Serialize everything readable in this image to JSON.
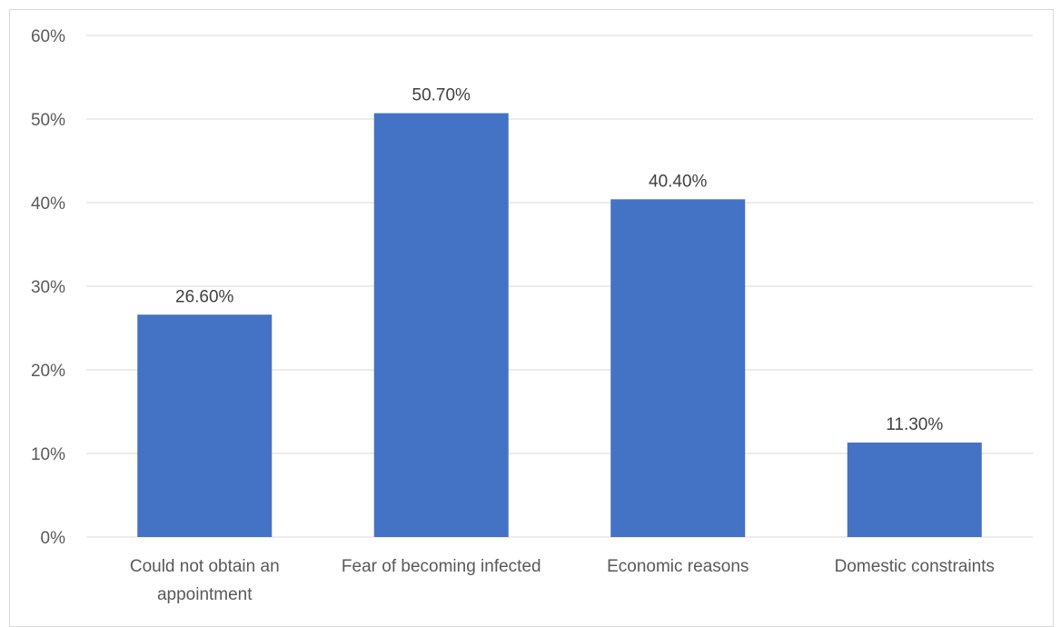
{
  "chart_data": {
    "type": "bar",
    "categories": [
      "Could not obtain an appointment",
      "Fear of becoming infected",
      "Economic reasons",
      "Domestic constraints"
    ],
    "category_label_lines": [
      [
        "Could not obtain an",
        "appointment"
      ],
      [
        "Fear of becoming infected"
      ],
      [
        "Economic reasons"
      ],
      [
        "Domestic constraints"
      ]
    ],
    "values": [
      26.6,
      50.7,
      40.4,
      11.3
    ],
    "data_labels": [
      "26.60%",
      "50.70%",
      "40.40%",
      "11.30%"
    ],
    "y_ticks": [
      "0%",
      "10%",
      "20%",
      "30%",
      "40%",
      "50%",
      "60%"
    ],
    "ylim": [
      0,
      60
    ],
    "y_unit": "percent",
    "title": "",
    "xlabel": "",
    "ylabel": "",
    "grid": true,
    "legend": "none",
    "bar_color": "#4472C4",
    "grid_color": "#d9d9d9",
    "axis_color": "#d9d9d9"
  }
}
